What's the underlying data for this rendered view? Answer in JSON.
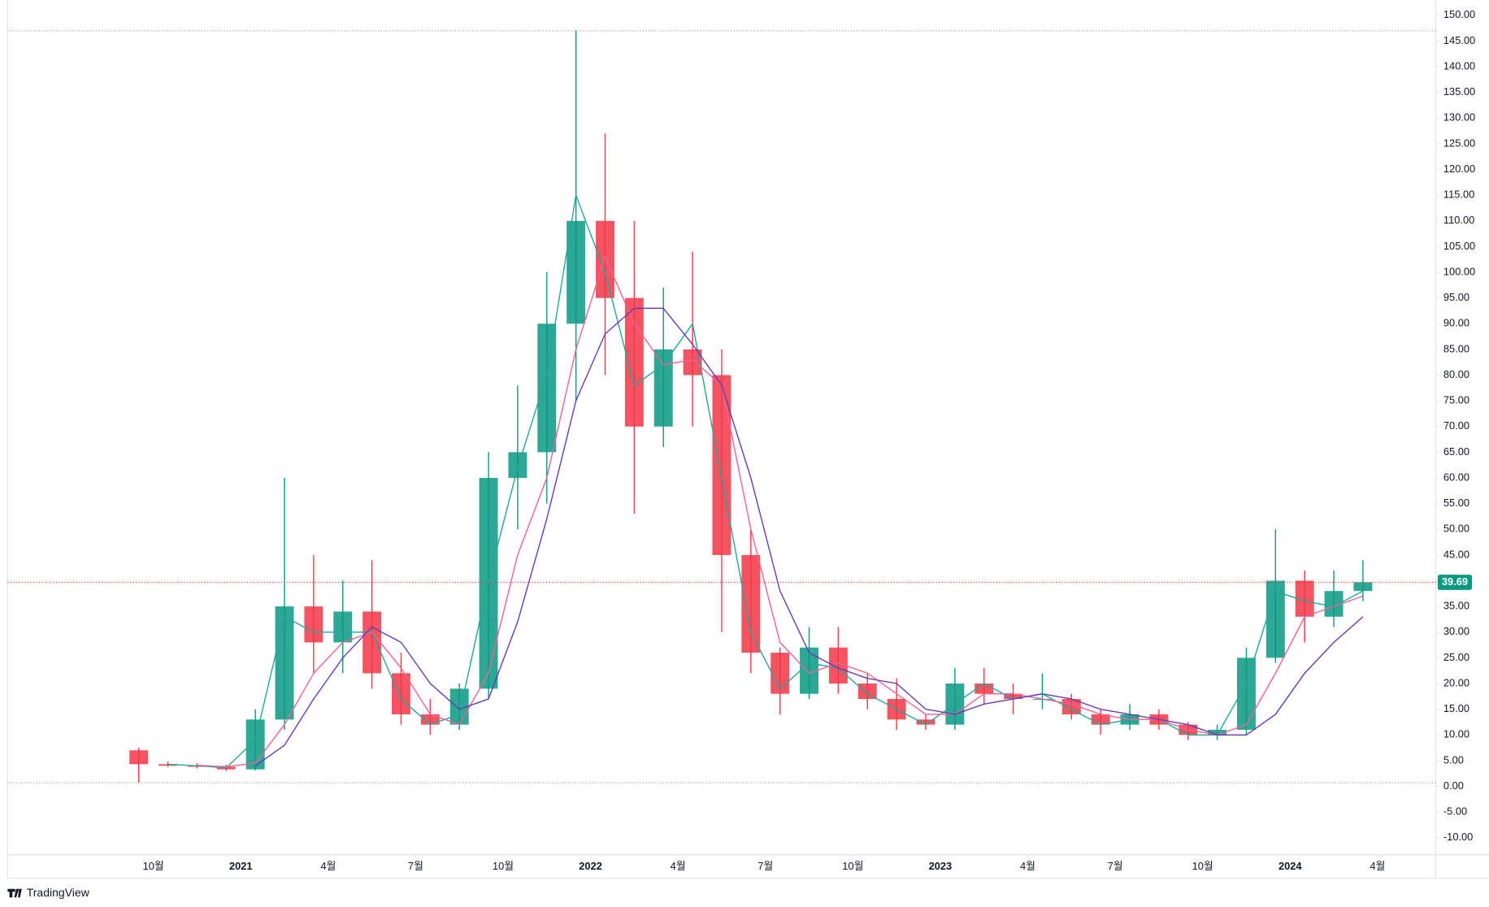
{
  "chart_data": {
    "type": "candlestick",
    "x": [
      "2020-09",
      "2020-10",
      "2020-11",
      "2020-12",
      "2021-01",
      "2021-02",
      "2021-03",
      "2021-04",
      "2021-05",
      "2021-06",
      "2021-07",
      "2021-08",
      "2021-09",
      "2021-10",
      "2021-11",
      "2021-12",
      "2022-01",
      "2022-02",
      "2022-03",
      "2022-04",
      "2022-05",
      "2022-06",
      "2022-07",
      "2022-08",
      "2022-09",
      "2022-10",
      "2022-11",
      "2022-12",
      "2023-01",
      "2023-02",
      "2023-03",
      "2023-04",
      "2023-05",
      "2023-06",
      "2023-07",
      "2023-08",
      "2023-09",
      "2023-10",
      "2023-11",
      "2023-12",
      "2024-01",
      "2024-02",
      "2024-03"
    ],
    "open": [
      7,
      4.3,
      4.0,
      3.8,
      3.3,
      13,
      35,
      28,
      34,
      22,
      14,
      12,
      19,
      60,
      65,
      90,
      110,
      95,
      70,
      85,
      80,
      45,
      26,
      18,
      27,
      20,
      17,
      13,
      12,
      20,
      18,
      17,
      17,
      14,
      12,
      14,
      12,
      10,
      11,
      25,
      40,
      33,
      38
    ],
    "high": [
      7.5,
      4.8,
      4.5,
      4.2,
      15,
      60,
      45,
      40,
      44,
      26,
      17,
      20,
      65,
      78,
      100,
      147,
      127,
      110,
      97,
      104,
      85,
      50,
      27,
      31,
      31,
      22,
      21,
      14,
      23,
      23,
      20,
      22,
      18,
      15,
      16,
      15,
      12.5,
      12,
      27,
      50,
      42,
      42,
      44
    ],
    "low": [
      0.7,
      3.8,
      3.5,
      3.0,
      3.1,
      11,
      22,
      22,
      19,
      12,
      10,
      11,
      17,
      50,
      55,
      75,
      80,
      53,
      66,
      70,
      30,
      22,
      14,
      17,
      18,
      15,
      11,
      11,
      11,
      16,
      14,
      15,
      13,
      10,
      11,
      11,
      9,
      9,
      10,
      24,
      28,
      31,
      36
    ],
    "close": [
      4.3,
      4.0,
      3.8,
      3.3,
      13,
      35,
      28,
      34,
      22,
      14,
      12,
      19,
      60,
      65,
      90,
      110,
      95,
      70,
      85,
      80,
      45,
      26,
      18,
      27,
      20,
      17,
      13,
      12,
      20,
      18,
      17,
      17,
      14,
      12,
      14,
      12,
      10,
      11,
      25,
      40,
      33,
      38,
      39.69
    ],
    "up_color": "#089981",
    "down_color": "#f23645",
    "moving_averages": [
      {
        "color": "#26a69a",
        "values": [
          null,
          4.3,
          4.0,
          3.6,
          9,
          33,
          30,
          30,
          30,
          17,
          12,
          14,
          40,
          62,
          80,
          115,
          100,
          78,
          82,
          90,
          60,
          30,
          19,
          24,
          23,
          18,
          15,
          12,
          16,
          20,
          17,
          18,
          15,
          12,
          13,
          13,
          10,
          10,
          20,
          38,
          36,
          35,
          38
        ]
      },
      {
        "color": "#f06292",
        "values": [
          null,
          null,
          4.1,
          3.8,
          4.5,
          12,
          22,
          28,
          30,
          23,
          14,
          12,
          22,
          45,
          60,
          85,
          103,
          90,
          82,
          83,
          78,
          50,
          28,
          22,
          24,
          22,
          18,
          14,
          14,
          18,
          18,
          17,
          16,
          14,
          13,
          13,
          11,
          10,
          12,
          22,
          33,
          35,
          37
        ]
      },
      {
        "color": "#673ab7",
        "values": [
          null,
          null,
          null,
          null,
          4,
          8,
          17,
          25,
          31,
          28,
          20,
          15,
          17,
          32,
          52,
          75,
          88,
          93,
          93,
          86,
          78,
          60,
          38,
          26,
          23,
          21,
          20,
          15,
          14,
          16,
          17,
          18,
          17,
          15,
          14,
          13,
          12,
          10,
          10,
          14,
          22,
          28,
          33
        ]
      }
    ],
    "last_price": 39.69,
    "xlim": [
      "2020-05",
      "2024-06"
    ],
    "ylim": [
      -13.3,
      152.96
    ],
    "yticks": [
      {
        "value": 150,
        "label": "150.00"
      },
      {
        "value": 145,
        "label": "145.00"
      },
      {
        "value": 140,
        "label": "140.00"
      },
      {
        "value": 135,
        "label": "135.00"
      },
      {
        "value": 130,
        "label": "130.00"
      },
      {
        "value": 125,
        "label": "125.00"
      },
      {
        "value": 120,
        "label": "120.00"
      },
      {
        "value": 115,
        "label": "115.00"
      },
      {
        "value": 110,
        "label": "110.00"
      },
      {
        "value": 105,
        "label": "105.00"
      },
      {
        "value": 100,
        "label": "100.00"
      },
      {
        "value": 95,
        "label": "95.00"
      },
      {
        "value": 90,
        "label": "90.00"
      },
      {
        "value": 85,
        "label": "85.00"
      },
      {
        "value": 80,
        "label": "80.00"
      },
      {
        "value": 75,
        "label": "75.00"
      },
      {
        "value": 70,
        "label": "70.00"
      },
      {
        "value": 65,
        "label": "65.00"
      },
      {
        "value": 60,
        "label": "60.00"
      },
      {
        "value": 55,
        "label": "55.00"
      },
      {
        "value": 50,
        "label": "50.00"
      },
      {
        "value": 45,
        "label": "45.00"
      },
      {
        "value": 40,
        "label": "40.00"
      },
      {
        "value": 35,
        "label": "35.00"
      },
      {
        "value": 30,
        "label": "30.00"
      },
      {
        "value": 25,
        "label": "25.00"
      },
      {
        "value": 20,
        "label": "20.00"
      },
      {
        "value": 15,
        "label": "15.00"
      },
      {
        "value": 10,
        "label": "10.00"
      },
      {
        "value": 5,
        "label": "5.00"
      },
      {
        "value": 0,
        "label": "0.00"
      },
      {
        "value": -5,
        "label": "-5.00"
      },
      {
        "value": -10,
        "label": "-10.00"
      }
    ],
    "xticks": [
      {
        "value": "2020-10",
        "label": "10월"
      },
      {
        "value": "2021-01",
        "label": "2021"
      },
      {
        "value": "2021-04",
        "label": "4월"
      },
      {
        "value": "2021-07",
        "label": "7월"
      },
      {
        "value": "2021-10",
        "label": "10월"
      },
      {
        "value": "2022-01",
        "label": "2022"
      },
      {
        "value": "2022-04",
        "label": "4월"
      },
      {
        "value": "2022-07",
        "label": "7월"
      },
      {
        "value": "2022-10",
        "label": "10월"
      },
      {
        "value": "2023-01",
        "label": "2023"
      },
      {
        "value": "2023-04",
        "label": "4월"
      },
      {
        "value": "2023-07",
        "label": "7월"
      },
      {
        "value": "2023-10",
        "label": "10월"
      },
      {
        "value": "2024-01",
        "label": "2024"
      },
      {
        "value": "2024-04",
        "label": "4월"
      }
    ],
    "brand": "TradingView"
  }
}
